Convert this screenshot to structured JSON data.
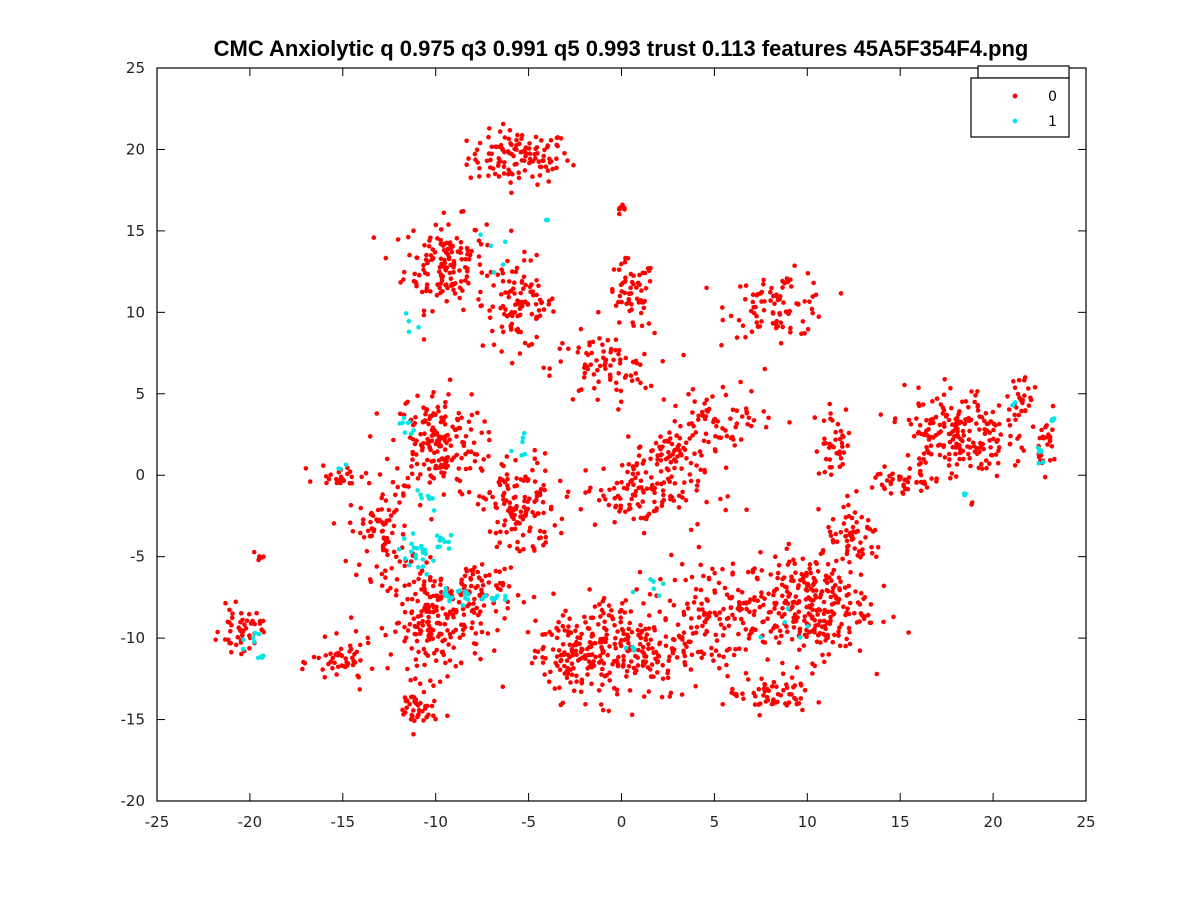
{
  "chart_data": {
    "type": "scatter",
    "title": "CMC Anxiolytic q 0.975 q3 0.991 q5 0.993 trust 0.113 features 45A5F354F4.png",
    "xlabel": "",
    "ylabel": "",
    "xlim": [
      -25,
      25
    ],
    "ylim": [
      -20,
      25
    ],
    "xticks": [
      "-25",
      "-20",
      "-15",
      "-10",
      "-5",
      "0",
      "5",
      "10",
      "15",
      "20",
      "25"
    ],
    "yticks": [
      "25",
      "20",
      "15",
      "10",
      "5",
      "0",
      "-5",
      "-10",
      "-15",
      "-20"
    ],
    "grid": false,
    "legend_position": "top-right",
    "series": [
      {
        "name": "0",
        "color": "#ff0000",
        "clusters": [
          {
            "center": [
              -5.5,
              19.5
            ],
            "spread": [
              2.5,
              1.5
            ],
            "n": 120
          },
          {
            "center": [
              -9.5,
              13.0
            ],
            "spread": [
              2.0,
              2.5
            ],
            "n": 150
          },
          {
            "center": [
              -5.5,
              10.5
            ],
            "spread": [
              1.8,
              2.5
            ],
            "n": 100
          },
          {
            "center": [
              0.5,
              11.0
            ],
            "spread": [
              1.2,
              2.0
            ],
            "n": 60
          },
          {
            "center": [
              0.0,
              16.2
            ],
            "spread": [
              0.3,
              0.3
            ],
            "n": 8
          },
          {
            "center": [
              8.5,
              10.5
            ],
            "spread": [
              2.5,
              1.8
            ],
            "n": 90
          },
          {
            "center": [
              -1.0,
              6.5
            ],
            "spread": [
              2.5,
              2.0
            ],
            "n": 80
          },
          {
            "center": [
              -10.0,
              2.0
            ],
            "spread": [
              2.2,
              3.0
            ],
            "n": 180
          },
          {
            "center": [
              -5.5,
              -2.0
            ],
            "spread": [
              1.8,
              3.0
            ],
            "n": 130
          },
          {
            "center": [
              -13.0,
              -3.5
            ],
            "spread": [
              1.5,
              2.5
            ],
            "n": 80
          },
          {
            "center": [
              -10.0,
              -9.0
            ],
            "spread": [
              2.2,
              3.0
            ],
            "n": 200
          },
          {
            "center": [
              -7.5,
              -7.0
            ],
            "spread": [
              1.5,
              2.0
            ],
            "n": 60
          },
          {
            "center": [
              -15.0,
              -11.5
            ],
            "spread": [
              1.5,
              1.2
            ],
            "n": 50
          },
          {
            "center": [
              -11.0,
              -14.5
            ],
            "spread": [
              1.0,
              1.2
            ],
            "n": 40
          },
          {
            "center": [
              -20.5,
              -9.5
            ],
            "spread": [
              1.0,
              1.2
            ],
            "n": 50
          },
          {
            "center": [
              -19.5,
              -5.0
            ],
            "spread": [
              0.4,
              0.3
            ],
            "n": 6
          },
          {
            "center": [
              -15.0,
              0.0
            ],
            "spread": [
              1.2,
              0.6
            ],
            "n": 25
          },
          {
            "center": [
              1.0,
              -1.0
            ],
            "spread": [
              3.0,
              2.0
            ],
            "n": 130
          },
          {
            "center": [
              2.5,
              1.5
            ],
            "spread": [
              1.5,
              1.0
            ],
            "n": 50
          },
          {
            "center": [
              0.0,
              -10.5
            ],
            "spread": [
              3.5,
              3.0
            ],
            "n": 260
          },
          {
            "center": [
              5.0,
              -8.5
            ],
            "spread": [
              3.0,
              3.0
            ],
            "n": 140
          },
          {
            "center": [
              10.0,
              -8.0
            ],
            "spread": [
              3.0,
              3.0
            ],
            "n": 280
          },
          {
            "center": [
              8.0,
              -13.5
            ],
            "spread": [
              2.0,
              1.0
            ],
            "n": 60
          },
          {
            "center": [
              -3.0,
              -11.0
            ],
            "spread": [
              1.5,
              2.0
            ],
            "n": 60
          },
          {
            "center": [
              5.5,
              3.5
            ],
            "spread": [
              2.5,
              1.8
            ],
            "n": 70
          },
          {
            "center": [
              11.5,
              2.0
            ],
            "spread": [
              1.0,
              2.0
            ],
            "n": 40
          },
          {
            "center": [
              18.0,
              2.5
            ],
            "spread": [
              2.5,
              2.5
            ],
            "n": 200
          },
          {
            "center": [
              15.0,
              -0.5
            ],
            "spread": [
              1.5,
              1.0
            ],
            "n": 40
          },
          {
            "center": [
              21.5,
              4.5
            ],
            "spread": [
              0.8,
              2.0
            ],
            "n": 30
          },
          {
            "center": [
              23.0,
              2.0
            ],
            "spread": [
              0.5,
              1.5
            ],
            "n": 25
          },
          {
            "center": [
              12.5,
              -4.0
            ],
            "spread": [
              1.5,
              1.5
            ],
            "n": 60
          }
        ]
      },
      {
        "name": "1",
        "color": "#00e5e5",
        "clusters": [
          {
            "center": [
              -11.0,
              -5.0
            ],
            "spread": [
              1.0,
              1.0
            ],
            "n": 22
          },
          {
            "center": [
              -9.0,
              -7.5
            ],
            "spread": [
              1.2,
              0.6
            ],
            "n": 18
          },
          {
            "center": [
              -7.0,
              -7.5
            ],
            "spread": [
              0.6,
              0.4
            ],
            "n": 10
          },
          {
            "center": [
              -11.5,
              3.0
            ],
            "spread": [
              0.5,
              1.0
            ],
            "n": 8
          },
          {
            "center": [
              -10.5,
              -1.5
            ],
            "spread": [
              0.5,
              0.8
            ],
            "n": 8
          },
          {
            "center": [
              -9.5,
              -4.0
            ],
            "spread": [
              0.5,
              0.5
            ],
            "n": 10
          },
          {
            "center": [
              -20.0,
              -9.5
            ],
            "spread": [
              0.8,
              1.5
            ],
            "n": 6
          },
          {
            "center": [
              -19.5,
              -11.3
            ],
            "spread": [
              0.3,
              0.2
            ],
            "n": 4
          },
          {
            "center": [
              -5.5,
              2.0
            ],
            "spread": [
              0.8,
              0.8
            ],
            "n": 6
          },
          {
            "center": [
              -7.0,
              13.0
            ],
            "spread": [
              1.0,
              1.5
            ],
            "n": 5
          },
          {
            "center": [
              -11.5,
              9.5
            ],
            "spread": [
              0.6,
              0.6
            ],
            "n": 4
          },
          {
            "center": [
              2.0,
              -7.0
            ],
            "spread": [
              1.0,
              1.0
            ],
            "n": 6
          },
          {
            "center": [
              0.5,
              -10.5
            ],
            "spread": [
              0.4,
              0.3
            ],
            "n": 4
          },
          {
            "center": [
              9.0,
              -9.0
            ],
            "spread": [
              1.0,
              1.5
            ],
            "n": 5
          },
          {
            "center": [
              22.5,
              1.5
            ],
            "spread": [
              0.4,
              0.8
            ],
            "n": 6
          },
          {
            "center": [
              23.2,
              3.5
            ],
            "spread": [
              0.2,
              0.4
            ],
            "n": 4
          },
          {
            "center": [
              21.0,
              4.5
            ],
            "spread": [
              0.3,
              0.3
            ],
            "n": 3
          },
          {
            "center": [
              18.5,
              -1.0
            ],
            "spread": [
              0.3,
              0.3
            ],
            "n": 3
          },
          {
            "center": [
              -15.0,
              0.5
            ],
            "spread": [
              0.3,
              0.2
            ],
            "n": 3
          },
          {
            "center": [
              -4.0,
              15.7
            ],
            "spread": [
              0.2,
              0.2
            ],
            "n": 2
          }
        ]
      }
    ]
  }
}
